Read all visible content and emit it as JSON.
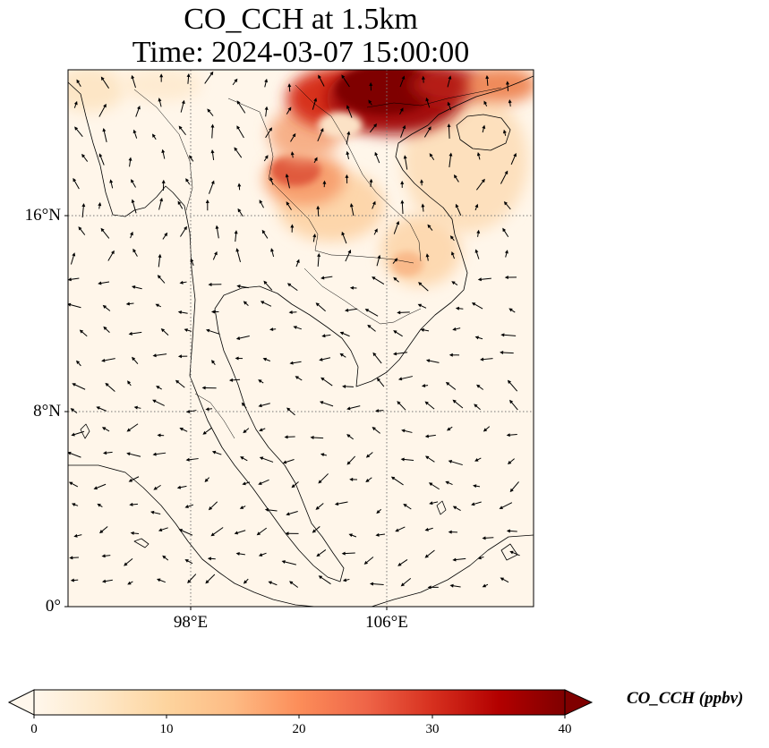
{
  "title": {
    "line1": "CO_CCH at 1.5km",
    "line2": "Time: 2024-03-07 15:00:00"
  },
  "map": {
    "lat_labels": [
      "16°N",
      "8°N",
      "0°"
    ],
    "lon_labels": [
      "98°E",
      "106°E"
    ],
    "gridlines": "dotted"
  },
  "colorbar": {
    "label": "CO_CCH (ppbv)",
    "ticks": [
      "0",
      "10",
      "20",
      "30",
      "40"
    ],
    "min": 0,
    "max": 40,
    "colormap": "OrRd",
    "extend": "both",
    "colors": [
      "#fff7ec",
      "#fee8c8",
      "#fdd49e",
      "#fdbb84",
      "#fc8d59",
      "#ef6548",
      "#d7301f",
      "#b30000",
      "#7f0000"
    ]
  }
}
